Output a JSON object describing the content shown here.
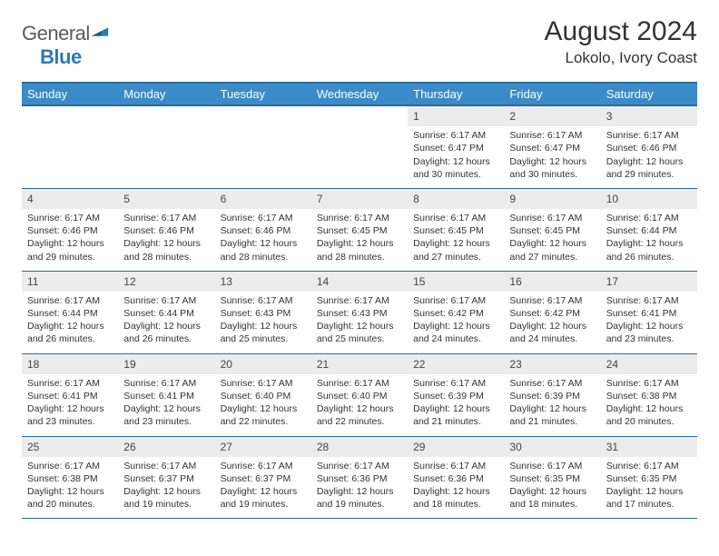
{
  "logo": {
    "text_gray": "General",
    "text_blue": "Blue"
  },
  "title": "August 2024",
  "location": "Lokolo, Ivory Coast",
  "colors": {
    "header_bg": "#3b8bc8",
    "header_border": "#2a6a9a",
    "daynum_bg": "#ececec",
    "text": "#333333",
    "logo_gray": "#5a5a5a",
    "logo_blue": "#2a7ab8",
    "background": "#ffffff"
  },
  "day_headers": [
    "Sunday",
    "Monday",
    "Tuesday",
    "Wednesday",
    "Thursday",
    "Friday",
    "Saturday"
  ],
  "weeks": [
    {
      "nums": [
        "",
        "",
        "",
        "",
        "1",
        "2",
        "3"
      ],
      "details": [
        null,
        null,
        null,
        null,
        {
          "sunrise": "6:17 AM",
          "sunset": "6:47 PM",
          "daylight": "12 hours and 30 minutes."
        },
        {
          "sunrise": "6:17 AM",
          "sunset": "6:47 PM",
          "daylight": "12 hours and 30 minutes."
        },
        {
          "sunrise": "6:17 AM",
          "sunset": "6:46 PM",
          "daylight": "12 hours and 29 minutes."
        }
      ]
    },
    {
      "nums": [
        "4",
        "5",
        "6",
        "7",
        "8",
        "9",
        "10"
      ],
      "details": [
        {
          "sunrise": "6:17 AM",
          "sunset": "6:46 PM",
          "daylight": "12 hours and 29 minutes."
        },
        {
          "sunrise": "6:17 AM",
          "sunset": "6:46 PM",
          "daylight": "12 hours and 28 minutes."
        },
        {
          "sunrise": "6:17 AM",
          "sunset": "6:46 PM",
          "daylight": "12 hours and 28 minutes."
        },
        {
          "sunrise": "6:17 AM",
          "sunset": "6:45 PM",
          "daylight": "12 hours and 28 minutes."
        },
        {
          "sunrise": "6:17 AM",
          "sunset": "6:45 PM",
          "daylight": "12 hours and 27 minutes."
        },
        {
          "sunrise": "6:17 AM",
          "sunset": "6:45 PM",
          "daylight": "12 hours and 27 minutes."
        },
        {
          "sunrise": "6:17 AM",
          "sunset": "6:44 PM",
          "daylight": "12 hours and 26 minutes."
        }
      ]
    },
    {
      "nums": [
        "11",
        "12",
        "13",
        "14",
        "15",
        "16",
        "17"
      ],
      "details": [
        {
          "sunrise": "6:17 AM",
          "sunset": "6:44 PM",
          "daylight": "12 hours and 26 minutes."
        },
        {
          "sunrise": "6:17 AM",
          "sunset": "6:44 PM",
          "daylight": "12 hours and 26 minutes."
        },
        {
          "sunrise": "6:17 AM",
          "sunset": "6:43 PM",
          "daylight": "12 hours and 25 minutes."
        },
        {
          "sunrise": "6:17 AM",
          "sunset": "6:43 PM",
          "daylight": "12 hours and 25 minutes."
        },
        {
          "sunrise": "6:17 AM",
          "sunset": "6:42 PM",
          "daylight": "12 hours and 24 minutes."
        },
        {
          "sunrise": "6:17 AM",
          "sunset": "6:42 PM",
          "daylight": "12 hours and 24 minutes."
        },
        {
          "sunrise": "6:17 AM",
          "sunset": "6:41 PM",
          "daylight": "12 hours and 23 minutes."
        }
      ]
    },
    {
      "nums": [
        "18",
        "19",
        "20",
        "21",
        "22",
        "23",
        "24"
      ],
      "details": [
        {
          "sunrise": "6:17 AM",
          "sunset": "6:41 PM",
          "daylight": "12 hours and 23 minutes."
        },
        {
          "sunrise": "6:17 AM",
          "sunset": "6:41 PM",
          "daylight": "12 hours and 23 minutes."
        },
        {
          "sunrise": "6:17 AM",
          "sunset": "6:40 PM",
          "daylight": "12 hours and 22 minutes."
        },
        {
          "sunrise": "6:17 AM",
          "sunset": "6:40 PM",
          "daylight": "12 hours and 22 minutes."
        },
        {
          "sunrise": "6:17 AM",
          "sunset": "6:39 PM",
          "daylight": "12 hours and 21 minutes."
        },
        {
          "sunrise": "6:17 AM",
          "sunset": "6:39 PM",
          "daylight": "12 hours and 21 minutes."
        },
        {
          "sunrise": "6:17 AM",
          "sunset": "6:38 PM",
          "daylight": "12 hours and 20 minutes."
        }
      ]
    },
    {
      "nums": [
        "25",
        "26",
        "27",
        "28",
        "29",
        "30",
        "31"
      ],
      "details": [
        {
          "sunrise": "6:17 AM",
          "sunset": "6:38 PM",
          "daylight": "12 hours and 20 minutes."
        },
        {
          "sunrise": "6:17 AM",
          "sunset": "6:37 PM",
          "daylight": "12 hours and 19 minutes."
        },
        {
          "sunrise": "6:17 AM",
          "sunset": "6:37 PM",
          "daylight": "12 hours and 19 minutes."
        },
        {
          "sunrise": "6:17 AM",
          "sunset": "6:36 PM",
          "daylight": "12 hours and 19 minutes."
        },
        {
          "sunrise": "6:17 AM",
          "sunset": "6:36 PM",
          "daylight": "12 hours and 18 minutes."
        },
        {
          "sunrise": "6:17 AM",
          "sunset": "6:35 PM",
          "daylight": "12 hours and 18 minutes."
        },
        {
          "sunrise": "6:17 AM",
          "sunset": "6:35 PM",
          "daylight": "12 hours and 17 minutes."
        }
      ]
    }
  ],
  "labels": {
    "sunrise": "Sunrise:",
    "sunset": "Sunset:",
    "daylight": "Daylight:"
  }
}
